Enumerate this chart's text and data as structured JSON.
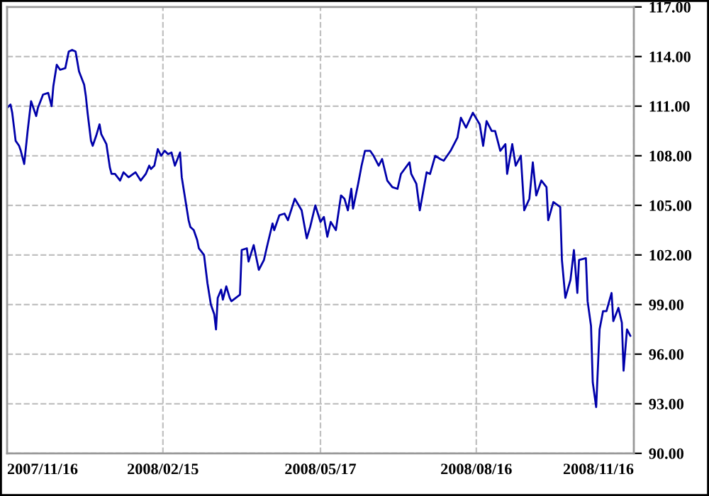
{
  "chart_data": {
    "type": "line",
    "x": [
      "2007-11-16",
      "2007-11-18",
      "2007-11-19",
      "2007-11-21",
      "2007-11-23",
      "2007-11-24",
      "2007-11-26",
      "2007-11-28",
      "2007-11-30",
      "2007-12-03",
      "2007-12-04",
      "2007-12-07",
      "2007-12-10",
      "2007-12-12",
      "2007-12-13",
      "2007-12-15",
      "2007-12-17",
      "2007-12-20",
      "2007-12-22",
      "2007-12-24",
      "2007-12-26",
      "2007-12-28",
      "2007-12-31",
      "2008-01-01",
      "2008-01-02",
      "2008-01-04",
      "2008-01-05",
      "2008-01-07",
      "2008-01-09",
      "2008-01-10",
      "2008-01-13",
      "2008-01-15",
      "2008-01-16",
      "2008-01-18",
      "2008-01-21",
      "2008-01-23",
      "2008-01-26",
      "2008-01-30",
      "2008-02-02",
      "2008-02-05",
      "2008-02-07",
      "2008-02-08",
      "2008-02-10",
      "2008-02-12",
      "2008-02-14",
      "2008-02-16",
      "2008-02-18",
      "2008-02-20",
      "2008-02-22",
      "2008-02-25",
      "2008-02-26",
      "2008-02-28",
      "2008-03-01",
      "2008-03-02",
      "2008-03-04",
      "2008-03-06",
      "2008-03-07",
      "2008-03-10",
      "2008-03-12",
      "2008-03-14",
      "2008-03-16",
      "2008-03-17",
      "2008-03-18",
      "2008-03-20",
      "2008-03-21",
      "2008-03-23",
      "2008-03-25",
      "2008-03-26",
      "2008-03-31",
      "2008-04-01",
      "2008-04-04",
      "2008-04-05",
      "2008-04-08",
      "2008-04-11",
      "2008-04-14",
      "2008-04-16",
      "2008-04-19",
      "2008-04-20",
      "2008-04-23",
      "2008-04-26",
      "2008-04-28",
      "2008-05-02",
      "2008-05-06",
      "2008-05-09",
      "2008-05-11",
      "2008-05-14",
      "2008-05-17",
      "2008-05-19",
      "2008-05-21",
      "2008-05-23",
      "2008-05-26",
      "2008-05-29",
      "2008-05-31",
      "2008-06-02",
      "2008-06-04",
      "2008-06-05",
      "2008-06-08",
      "2008-06-10",
      "2008-06-12",
      "2008-06-15",
      "2008-06-17",
      "2008-06-20",
      "2008-06-22",
      "2008-06-25",
      "2008-06-28",
      "2008-07-01",
      "2008-07-03",
      "2008-07-08",
      "2008-07-09",
      "2008-07-12",
      "2008-07-14",
      "2008-07-18",
      "2008-07-20",
      "2008-07-23",
      "2008-07-26",
      "2008-07-28",
      "2008-08-01",
      "2008-08-05",
      "2008-08-07",
      "2008-08-10",
      "2008-08-14",
      "2008-08-18",
      "2008-08-20",
      "2008-08-22",
      "2008-08-25",
      "2008-08-27",
      "2008-08-30",
      "2008-09-02",
      "2008-09-03",
      "2008-09-06",
      "2008-09-08",
      "2008-09-11",
      "2008-09-13",
      "2008-09-16",
      "2008-09-18",
      "2008-09-20",
      "2008-09-23",
      "2008-09-26",
      "2008-09-27",
      "2008-09-30",
      "2008-10-04",
      "2008-10-05",
      "2008-10-07",
      "2008-10-10",
      "2008-10-12",
      "2008-10-14",
      "2008-10-15",
      "2008-10-19",
      "2008-10-20",
      "2008-10-22",
      "2008-10-23",
      "2008-10-25",
      "2008-10-27",
      "2008-10-29",
      "2008-10-31",
      "2008-11-03",
      "2008-11-04",
      "2008-11-07",
      "2008-11-09",
      "2008-11-10",
      "2008-11-12",
      "2008-11-14"
    ],
    "series": [
      {
        "color": "#0000aa",
        "values": [
          110.9,
          111.1,
          110.6,
          108.9,
          108.6,
          108.3,
          107.5,
          109.5,
          111.3,
          110.4,
          110.9,
          111.7,
          111.8,
          111.0,
          112.2,
          113.5,
          113.2,
          113.3,
          114.3,
          114.4,
          114.3,
          113.1,
          112.3,
          111.6,
          110.6,
          108.9,
          108.6,
          109.2,
          109.9,
          109.3,
          108.7,
          107.3,
          106.9,
          106.9,
          106.5,
          107.0,
          106.7,
          107.0,
          106.5,
          106.9,
          107.4,
          107.2,
          107.4,
          108.4,
          108.0,
          108.3,
          108.1,
          108.2,
          107.4,
          108.2,
          106.7,
          105.4,
          104.1,
          103.7,
          103.5,
          102.9,
          102.4,
          102.0,
          100.3,
          99.0,
          98.4,
          97.5,
          99.4,
          99.9,
          99.3,
          100.1,
          99.4,
          99.2,
          99.6,
          102.3,
          102.4,
          101.6,
          102.6,
          101.1,
          101.7,
          102.6,
          103.9,
          103.5,
          104.4,
          104.5,
          104.1,
          105.4,
          104.7,
          103.0,
          103.7,
          105.0,
          104.0,
          104.3,
          103.1,
          104.0,
          103.5,
          105.6,
          105.4,
          104.7,
          106.0,
          104.8,
          106.3,
          107.4,
          108.3,
          108.3,
          108.0,
          107.4,
          107.8,
          106.5,
          106.1,
          106.0,
          106.9,
          107.6,
          106.9,
          106.3,
          104.7,
          107.0,
          106.9,
          108.0,
          107.8,
          107.7,
          108.3,
          109.1,
          110.3,
          109.7,
          110.6,
          109.9,
          108.6,
          110.1,
          109.5,
          109.5,
          108.3,
          108.7,
          106.9,
          108.7,
          107.4,
          108.0,
          104.7,
          105.4,
          107.6,
          105.6,
          106.5,
          106.1,
          104.1,
          105.2,
          104.9,
          101.7,
          99.4,
          100.5,
          102.3,
          99.7,
          101.7,
          101.8,
          99.2,
          97.7,
          94.3,
          92.8,
          97.5,
          98.6,
          98.6,
          99.7,
          98.0,
          98.8,
          97.9,
          95.0,
          97.5,
          97.1
        ]
      }
    ],
    "xlim": [
      "2007-11-16",
      "2008-11-16"
    ],
    "xticks": [
      {
        "value": "2007-11-16",
        "label": "2007/11/16"
      },
      {
        "value": "2008-02-15",
        "label": "2008/02/15"
      },
      {
        "value": "2008-05-17",
        "label": "2008/05/17"
      },
      {
        "value": "2008-08-16",
        "label": "2008/08/16"
      },
      {
        "value": "2008-11-16",
        "label": "2008/11/16"
      }
    ],
    "ylim": [
      90,
      117
    ],
    "yticks": [
      {
        "value": 90,
        "label": "90.00"
      },
      {
        "value": 93,
        "label": "93.00"
      },
      {
        "value": 96,
        "label": "96.00"
      },
      {
        "value": 99,
        "label": "99.00"
      },
      {
        "value": 102,
        "label": "102.00"
      },
      {
        "value": 105,
        "label": "105.00"
      },
      {
        "value": 108,
        "label": "108.00"
      },
      {
        "value": 111,
        "label": "111.00"
      },
      {
        "value": 114,
        "label": "114.00"
      },
      {
        "value": 117,
        "label": "117.00"
      }
    ],
    "grid": true,
    "line_style": "solid",
    "marker": "none"
  }
}
